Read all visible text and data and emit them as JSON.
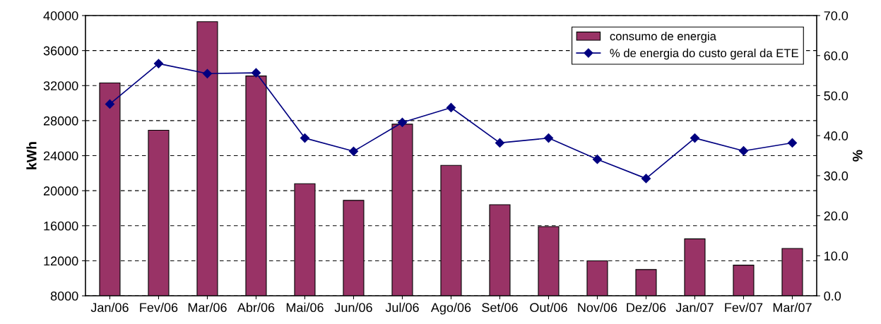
{
  "chart_data": {
    "type": "bar",
    "ylabel": "kWh",
    "y2label": "%",
    "categories": [
      "Jan/06",
      "Fev/06",
      "Mar/06",
      "Abr/06",
      "Mai/06",
      "Jun/06",
      "Jul/06",
      "Ago/06",
      "Set/06",
      "Out/06",
      "Nov/06",
      "Dez/06",
      "Jan/07",
      "Fev/07",
      "Mar/07"
    ],
    "series": [
      {
        "name": "consumo de energia",
        "color": "#993366",
        "values": [
          32300,
          26900,
          39300,
          33100,
          20800,
          18900,
          27600,
          22900,
          18400,
          15900,
          12000,
          11000,
          14500,
          11500,
          13400
        ]
      },
      {
        "name": "% de energia do custo geral da ETE",
        "type": "line",
        "axis": "y2",
        "color": "#000080",
        "marker": "diamond",
        "values": [
          47.9,
          58.0,
          55.5,
          55.7,
          39.4,
          36.1,
          43.3,
          47.0,
          38.2,
          39.4,
          34.1,
          29.3,
          39.4,
          36.2,
          38.2
        ]
      }
    ],
    "ylim": [
      8000,
      40000
    ],
    "yticks": [
      8000,
      12000,
      16000,
      20000,
      24000,
      28000,
      32000,
      36000,
      40000
    ],
    "y2lim": [
      0,
      70
    ],
    "y2ticks": [
      {
        "value": 0,
        "label": "0.0"
      },
      {
        "value": 10,
        "label": "10.0"
      },
      {
        "value": 20,
        "label": "20.0"
      },
      {
        "value": 30,
        "label": "30.0"
      },
      {
        "value": 40,
        "label": "40.0"
      },
      {
        "value": 50,
        "label": "50.0"
      },
      {
        "value": 60,
        "label": "60.0"
      },
      {
        "value": 70,
        "label": "70.0"
      }
    ],
    "grid": "y",
    "legend": "top right"
  }
}
